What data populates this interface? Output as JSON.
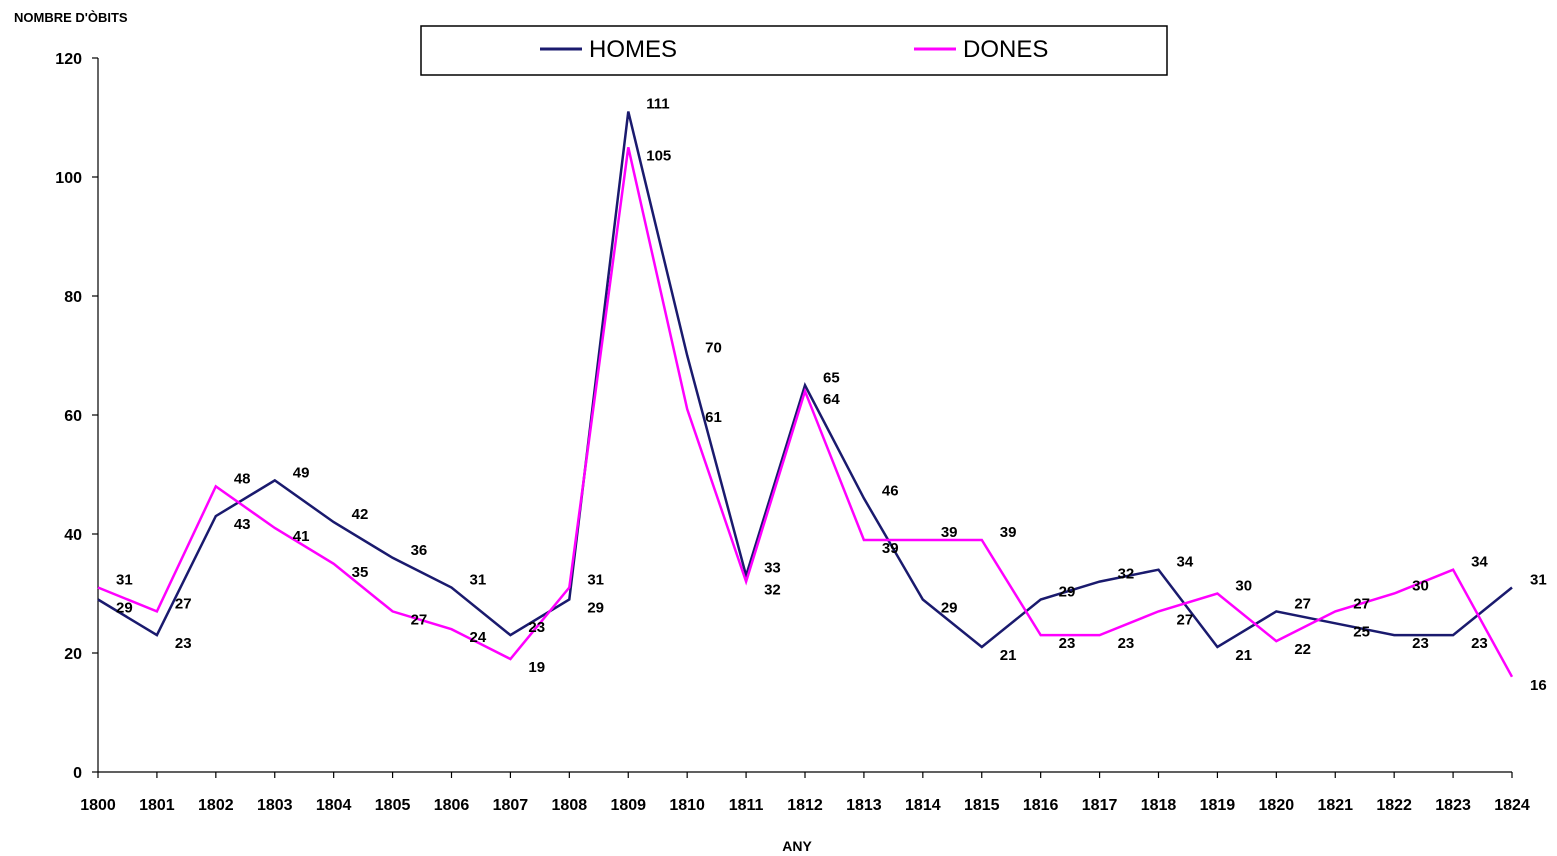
{
  "chart_data": {
    "type": "line",
    "ylabel": "NOMBRE D'ÒBITS",
    "xlabel": "ANY",
    "ylim": [
      0,
      120
    ],
    "yticks": [
      0,
      20,
      40,
      60,
      80,
      100,
      120
    ],
    "grid": false,
    "legend_position": "top-center",
    "categories": [
      "1800",
      "1801",
      "1802",
      "1803",
      "1804",
      "1805",
      "1806",
      "1807",
      "1808",
      "1809",
      "1810",
      "1811",
      "1812",
      "1813",
      "1814",
      "1815",
      "1816",
      "1817",
      "1818",
      "1819",
      "1820",
      "1821",
      "1822",
      "1823",
      "1824"
    ],
    "series": [
      {
        "name": "HOMES",
        "color": "#1a1a6e",
        "values": [
          29,
          23,
          43,
          49,
          42,
          36,
          31,
          23,
          29,
          111,
          70,
          33,
          65,
          46,
          29,
          21,
          29,
          32,
          34,
          21,
          27,
          25,
          23,
          23,
          31
        ]
      },
      {
        "name": "DONES",
        "color": "#ff00ff",
        "values": [
          31,
          27,
          48,
          41,
          35,
          27,
          24,
          19,
          31,
          105,
          61,
          32,
          64,
          39,
          39,
          39,
          23,
          23,
          27,
          30,
          22,
          27,
          30,
          34,
          16
        ]
      }
    ]
  }
}
